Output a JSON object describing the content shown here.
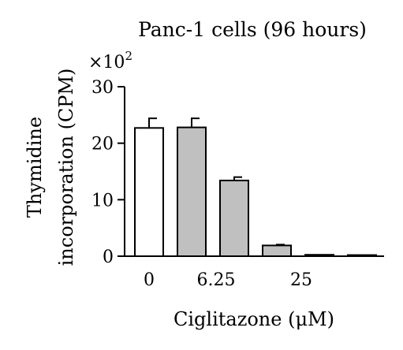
{
  "chart_data": {
    "type": "bar",
    "title": "Panc-1 cells (96 hours)",
    "xlabel": "Ciglitazone (μM)",
    "ylabel_line1": "Thymidine",
    "ylabel_line2": "incorporation (CPM)",
    "y_multiplier_base": "×10",
    "y_multiplier_exp": "2",
    "ylim": [
      0,
      30
    ],
    "yticks": [
      "0",
      "10",
      "20",
      "30"
    ],
    "x_tick_labels": [
      "0",
      "6.25",
      "25"
    ],
    "values": [
      22.7,
      22.8,
      13.4,
      1.9,
      0.25,
      0.2
    ],
    "errors": [
      1.7,
      1.6,
      0.6,
      0.15,
      0.1,
      0.1
    ],
    "bar_colors": [
      "#ffffff",
      "#c0c0c0",
      "#c0c0c0",
      "#c0c0c0",
      "#c0c0c0",
      "#c0c0c0"
    ],
    "grid": false,
    "legend": "none"
  }
}
